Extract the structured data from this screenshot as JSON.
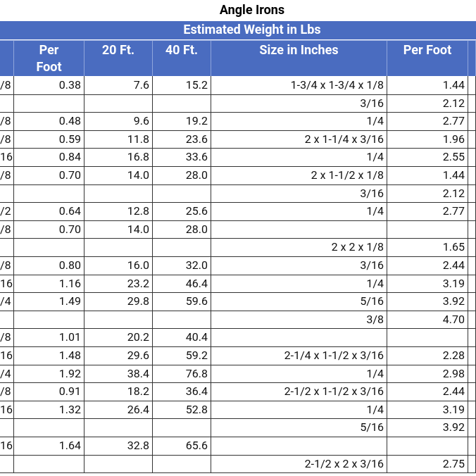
{
  "title": "Angle Irons",
  "table": {
    "group_header": "Estimated Weight in Lbs",
    "header": [
      null,
      "Per Foot",
      "20 Ft.",
      "40 Ft.",
      "Size in Inches",
      "Per Foot",
      null
    ],
    "rows": [
      [
        "/8",
        "0.38",
        "7.6",
        "15.2",
        "1-3/4 x 1-3/4 x 1/8",
        "1.44"
      ],
      [
        null,
        null,
        null,
        null,
        "3/16",
        "2.12"
      ],
      [
        "/8",
        "0.48",
        "9.6",
        "19.2",
        "1/4",
        "2.77"
      ],
      [
        "/8",
        "0.59",
        "11.8",
        "23.6",
        "2 x 1-1/4 x 3/16",
        "1.96"
      ],
      [
        "16",
        "0.84",
        "16.8",
        "33.6",
        "1/4",
        "2.55"
      ],
      [
        "/8",
        "0.70",
        "14.0",
        "28.0",
        "2 x 1-1/2 x 1/8",
        "1.44"
      ],
      [
        null,
        null,
        null,
        null,
        "3/16",
        "2.12"
      ],
      [
        "/2",
        "0.64",
        "12.8",
        "25.6",
        "1/4",
        "2.77"
      ],
      [
        "/8",
        "0.70",
        "14.0",
        "28.0",
        null,
        null
      ],
      [
        null,
        null,
        null,
        null,
        "2 x 2 x 1/8",
        "1.65"
      ],
      [
        "/8",
        "0.80",
        "16.0",
        "32.0",
        "3/16",
        "2.44"
      ],
      [
        "16",
        "1.16",
        "23.2",
        "46.4",
        "1/4",
        "3.19"
      ],
      [
        "/4",
        "1.49",
        "29.8",
        "59.6",
        "5/16",
        "3.92"
      ],
      [
        null,
        null,
        null,
        null,
        "3/8",
        "4.70"
      ],
      [
        "/8",
        "1.01",
        "20.2",
        "40.4",
        null,
        null
      ],
      [
        "16",
        "1.48",
        "29.6",
        "59.2",
        "2-1/4 x 1-1/2 x 3/16",
        "2.28"
      ],
      [
        "/4",
        "1.92",
        "38.4",
        "76.8",
        "1/4",
        "2.98"
      ],
      [
        "/8",
        "0.91",
        "18.2",
        "36.4",
        "2-1/2 x 1-1/2 x 3/16",
        "2.44"
      ],
      [
        "16",
        "1.32",
        "26.4",
        "52.8",
        "1/4",
        "3.19"
      ],
      [
        null,
        null,
        null,
        null,
        "5/16",
        "3.92"
      ],
      [
        "16",
        "1.64",
        "32.8",
        "65.6",
        null,
        null
      ],
      [
        null,
        null,
        null,
        null,
        "2-1/2 x 2 x 3/16",
        "2.75"
      ]
    ]
  }
}
